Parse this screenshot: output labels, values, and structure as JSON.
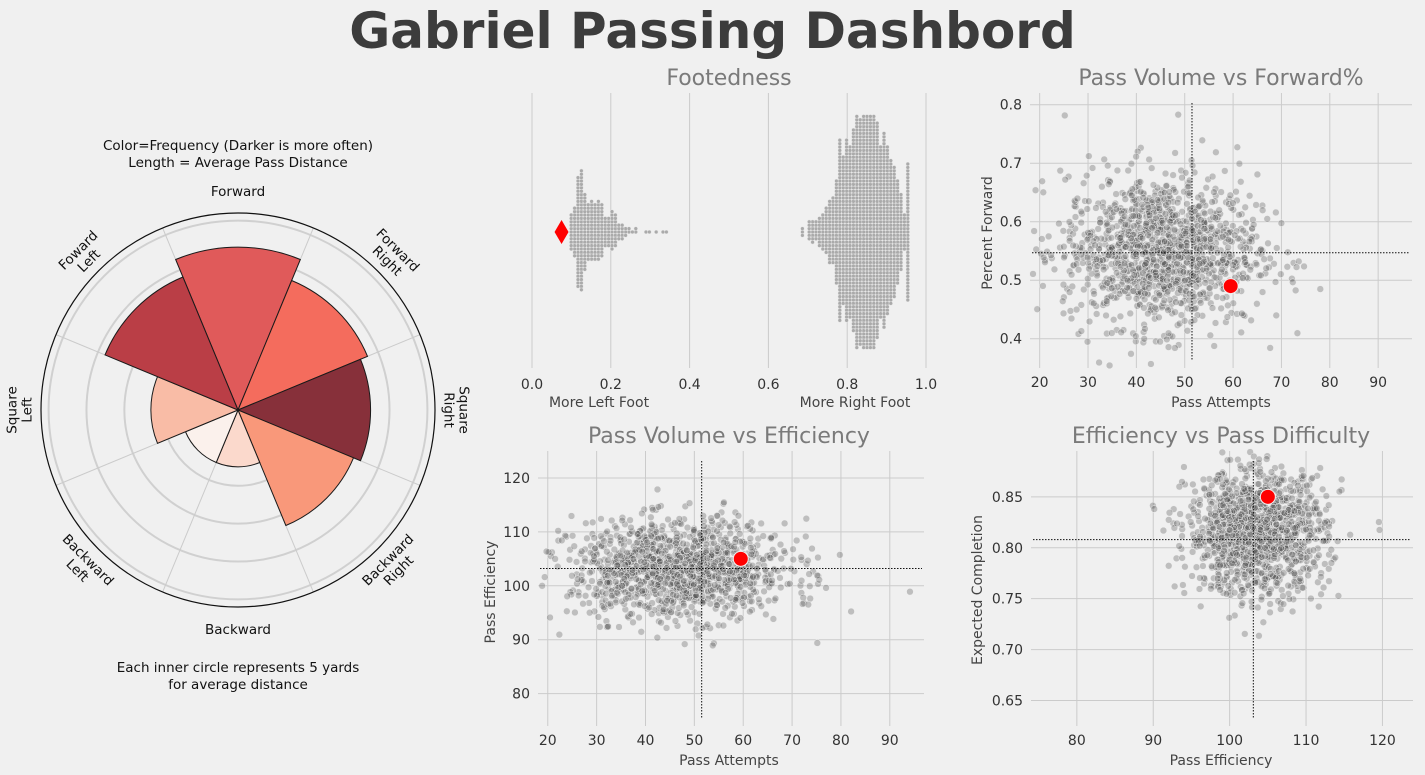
{
  "title": "Gabriel Passing Dashbord",
  "colors": {
    "background": "#f0f0f0",
    "highlight": "#ff0000",
    "dots": "#555555",
    "swarm": "#aaaaaa"
  },
  "polar": {
    "note_top_1": "Color=Frequency (Darker is more often)",
    "note_top_2": "Length = Average Pass Distance",
    "note_bottom_1": "Each inner circle represents 5 yards",
    "note_bottom_2": "for average distance",
    "ring_step_yards": 5,
    "max_yards": 26
  },
  "chart_data": [
    {
      "type": "bar",
      "subtype": "polar",
      "categories": [
        "Forward",
        "Forward Right",
        "Square Right",
        "Backward Right",
        "Backward",
        "Backward Left",
        "Square Left",
        "Foward Left"
      ],
      "label_lines": [
        [
          "Forward"
        ],
        [
          "Forward",
          "Right"
        ],
        [
          "Square",
          "Right"
        ],
        [
          "Backward",
          "Right"
        ],
        [
          "Backward"
        ],
        [
          "Backward",
          "Left"
        ],
        [
          "Square",
          "Left"
        ],
        [
          "Foward",
          "Left"
        ]
      ],
      "values": [
        21.5,
        18.5,
        17.5,
        16.5,
        7.5,
        7.5,
        11.5,
        19
      ],
      "colors": [
        "#e05a5a",
        "#f46c5d",
        "#87303a",
        "#f9987a",
        "#fbd9cc",
        "#fbf1ec",
        "#f9bca6",
        "#ba3e46"
      ],
      "unit": "yards (average pass distance)"
    },
    {
      "type": "scatter",
      "subtype": "swarm",
      "title": "Footedness",
      "xlim": [
        0,
        1
      ],
      "xticks": [
        "0.0",
        "0.2",
        "0.4",
        "0.6",
        "0.8",
        "1.0"
      ],
      "xlabel_left": "More Left Foot",
      "xlabel_right": "More Right Foot",
      "highlight": {
        "x": 0.075
      },
      "distribution": "swarm of roughly 1500 players, dense between 0.78 and 0.90, with a smaller cluster near 0.12"
    },
    {
      "type": "scatter",
      "title": "Pass Volume vs Forward%",
      "xlabel": "Pass Attempts",
      "ylabel": "Percent Forward",
      "xlim": [
        18,
        97
      ],
      "ylim": [
        0.35,
        0.82
      ],
      "xticks": [
        20,
        30,
        40,
        50,
        60,
        70,
        80,
        90
      ],
      "yticks": [
        "0.4",
        "0.5",
        "0.6",
        "0.7",
        "0.8"
      ],
      "mean_lines": {
        "x": 51.5,
        "y": 0.547
      },
      "highlight": {
        "x": 59.5,
        "y": 0.49
      },
      "cloud": {
        "x_center": 45,
        "x_spread": 10,
        "y_center": 0.55,
        "y_spread": 0.065,
        "n": 1300
      }
    },
    {
      "type": "scatter",
      "title": "Pass Volume vs Efficiency",
      "xlabel": "Pass Attempts",
      "ylabel": "Pass Efficiency",
      "xlim": [
        18,
        97
      ],
      "ylim": [
        74,
        125
      ],
      "xticks": [
        20,
        30,
        40,
        50,
        60,
        70,
        80,
        90
      ],
      "yticks": [
        "80",
        "90",
        "100",
        "110",
        "120"
      ],
      "mean_lines": {
        "x": 51.5,
        "y": 103.2
      },
      "highlight": {
        "x": 59.5,
        "y": 105
      },
      "cloud": {
        "x_center": 47,
        "x_spread": 11,
        "y_center": 103,
        "y_spread": 4.5,
        "n": 1300
      }
    },
    {
      "type": "scatter",
      "title": "Efficiency vs Pass Difficulty",
      "xlabel": "Pass Efficiency",
      "ylabel": "Expected Completion",
      "xlim": [
        74,
        124
      ],
      "ylim": [
        0.625,
        0.895
      ],
      "xticks": [
        80,
        90,
        100,
        110,
        120
      ],
      "yticks": [
        "0.65",
        "0.70",
        "0.75",
        "0.80",
        "0.85"
      ],
      "mean_lines": {
        "x": 103.1,
        "y": 0.808
      },
      "highlight": {
        "x": 105,
        "y": 0.85
      },
      "cloud": {
        "x_center": 103.5,
        "x_spread": 4.5,
        "y_center": 0.815,
        "y_spread": 0.03,
        "n": 1300
      }
    }
  ]
}
